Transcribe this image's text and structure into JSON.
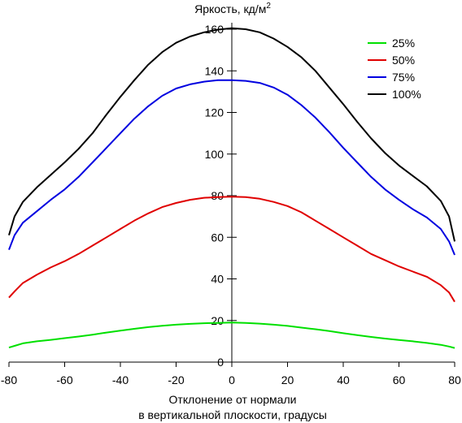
{
  "chart_data": {
    "type": "line",
    "title_main": "Яркость, кд/м",
    "title_sup": "2",
    "xlabel_line1": "Отклонение от нормали",
    "xlabel_line2": "в вертикальной плоскости, градусы",
    "xlim": [
      -80,
      80
    ],
    "ylim": [
      0,
      160
    ],
    "x_ticks": [
      -80,
      -60,
      -40,
      -20,
      0,
      20,
      40,
      60,
      80
    ],
    "y_ticks": [
      20,
      40,
      60,
      80,
      100,
      120,
      140,
      160
    ],
    "y_zero_label": "0",
    "grid": false,
    "legend_position": "top-right",
    "x": [
      -80,
      -78,
      -75,
      -70,
      -65,
      -60,
      -55,
      -50,
      -45,
      -40,
      -35,
      -30,
      -25,
      -20,
      -15,
      -10,
      -5,
      0,
      5,
      10,
      15,
      20,
      25,
      30,
      35,
      40,
      45,
      50,
      55,
      60,
      65,
      70,
      75,
      78,
      80
    ],
    "series": [
      {
        "name": "25%",
        "color": "#00e000",
        "values": [
          7,
          7.8,
          9,
          10,
          10.7,
          11.5,
          12.3,
          13.2,
          14.2,
          15.1,
          16,
          16.8,
          17.5,
          18,
          18.4,
          18.7,
          18.8,
          19,
          18.8,
          18.5,
          18,
          17.4,
          16.6,
          15.8,
          14.9,
          13.9,
          13,
          12.1,
          11.3,
          10.6,
          10,
          9.2,
          8.3,
          7.5,
          6.8
        ]
      },
      {
        "name": "50%",
        "color": "#e00000",
        "values": [
          31,
          34,
          38,
          42,
          45.5,
          48.5,
          52,
          56,
          60,
          64,
          68,
          71.5,
          74.5,
          76.5,
          78,
          79,
          79.3,
          79.5,
          79.3,
          78.5,
          77,
          75,
          72,
          68,
          64,
          60,
          56,
          52,
          49,
          46,
          43.5,
          41,
          37,
          33.5,
          29
        ]
      },
      {
        "name": "75%",
        "color": "#0000e0",
        "values": [
          54,
          61,
          67,
          72.5,
          78,
          83,
          89,
          96,
          103,
          110,
          117,
          123,
          128,
          131.5,
          133.5,
          134.8,
          135.5,
          135.5,
          135.2,
          134.2,
          132,
          128.5,
          123.5,
          117.5,
          110.5,
          103,
          96,
          89,
          83,
          78,
          73.5,
          69.5,
          64,
          58,
          51.5
        ]
      },
      {
        "name": "100%",
        "color": "#000000",
        "values": [
          61,
          70,
          77,
          84,
          90,
          96,
          102.5,
          110,
          119,
          127.5,
          135.5,
          143,
          149,
          153.5,
          156.5,
          158.5,
          159.8,
          160.5,
          160,
          158.5,
          155.5,
          151.5,
          146.5,
          140,
          132,
          124,
          115.5,
          107.5,
          100.5,
          94.5,
          89.5,
          84.5,
          77.5,
          70,
          58
        ]
      }
    ]
  }
}
